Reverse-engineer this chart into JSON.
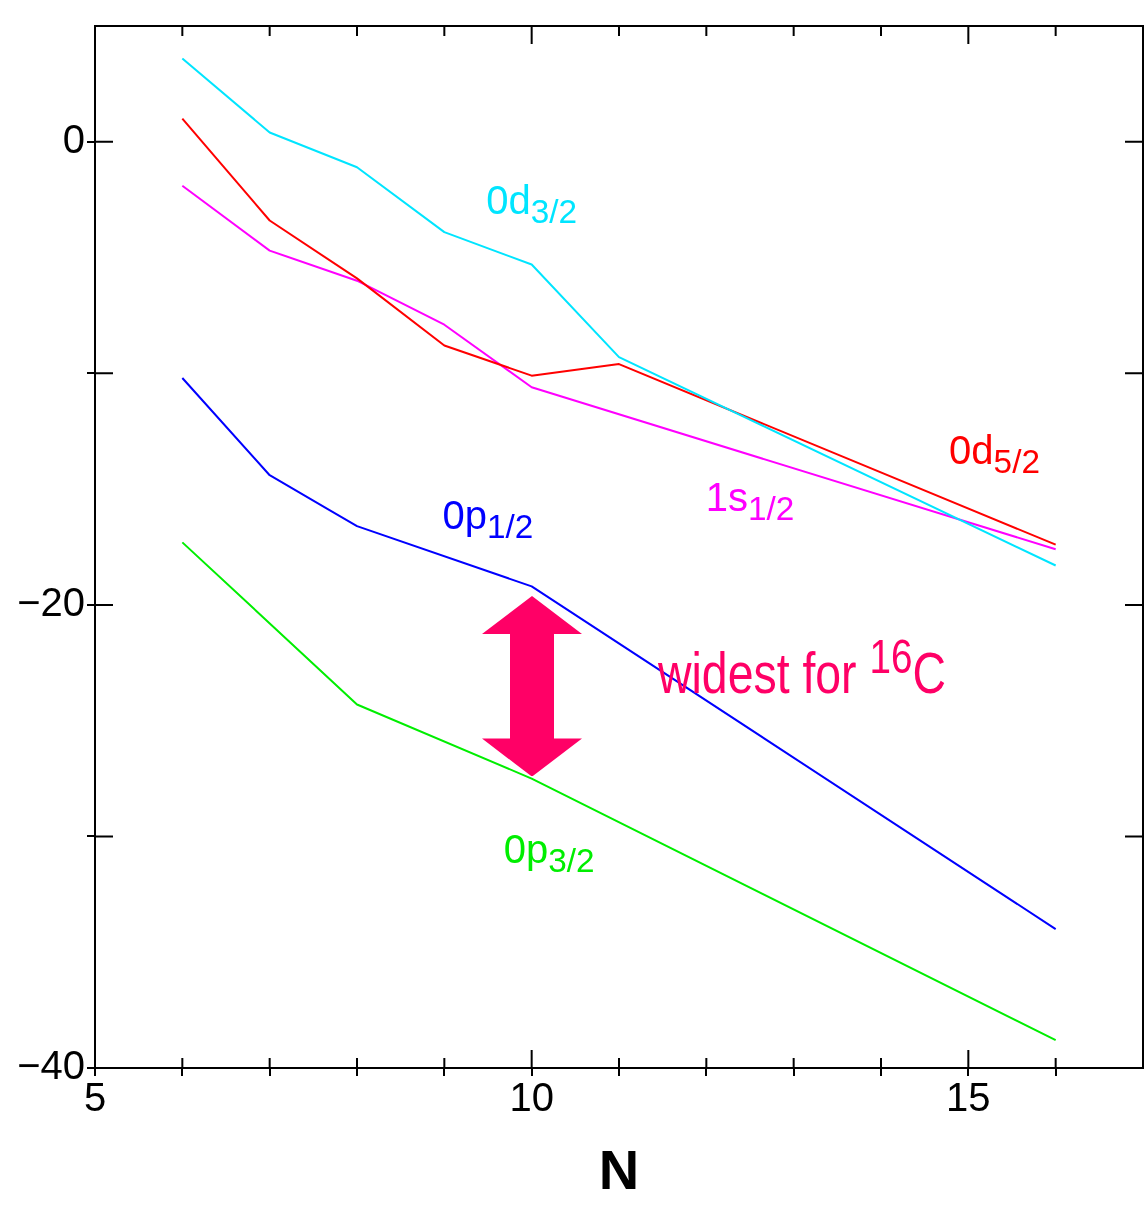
{
  "chart_data": {
    "type": "line",
    "xlabel": "N",
    "xlim": [
      5,
      17
    ],
    "ylim": [
      -40,
      5
    ],
    "xticks": [
      5,
      {
        "value": 6,
        "label": null
      },
      {
        "value": 7,
        "label": null
      },
      {
        "value": 8,
        "label": null
      },
      {
        "value": 9,
        "label": null
      },
      10,
      {
        "value": 11,
        "label": null
      },
      {
        "value": 12,
        "label": null
      },
      {
        "value": 13,
        "label": null
      },
      {
        "value": 14,
        "label": null
      },
      15,
      {
        "value": 16,
        "label": null
      }
    ],
    "yticks": [
      {
        "value": -40,
        "label": "−40"
      },
      {
        "value": -30,
        "label": null
      },
      {
        "value": -20,
        "label": "−20"
      },
      {
        "value": -10,
        "label": null
      },
      0
    ],
    "grid": false,
    "legend": false,
    "marker": "none",
    "line_style": "solid",
    "series": [
      {
        "name": "0d$_{3/2}$",
        "color": "#00e5ff",
        "x": [
          6,
          7,
          8,
          9,
          10,
          11,
          16
        ],
        "values": [
          3.6,
          0.4,
          -1.1,
          -3.9,
          -5.3,
          -9.3,
          -18.3
        ]
      },
      {
        "name": "0d$_{5/2}$",
        "color": "#ff0000",
        "x": [
          6,
          7,
          8,
          9,
          10,
          11,
          16
        ],
        "values": [
          1.0,
          -3.4,
          -5.9,
          -8.8,
          -10.1,
          -9.6,
          -17.4
        ]
      },
      {
        "name": "1s$_{1/2}$",
        "color": "#ff00ff",
        "x": [
          6,
          7,
          8,
          9,
          10,
          16
        ],
        "values": [
          -1.9,
          -4.7,
          -6.0,
          -7.9,
          -10.6,
          -17.6
        ]
      },
      {
        "name": "0p$_{1/2}$",
        "color": "#0000ff",
        "x": [
          6,
          7,
          8,
          10,
          16
        ],
        "values": [
          -10.2,
          -14.4,
          -16.6,
          -19.2,
          -34.0
        ]
      },
      {
        "name": "0p$_{3/2}$",
        "color": "#00ee00",
        "x": [
          6,
          8,
          10,
          16
        ],
        "values": [
          -17.3,
          -24.3,
          -27.5,
          -38.8
        ]
      }
    ],
    "annotations": [
      "widest for $^{16}$C"
    ]
  }
}
